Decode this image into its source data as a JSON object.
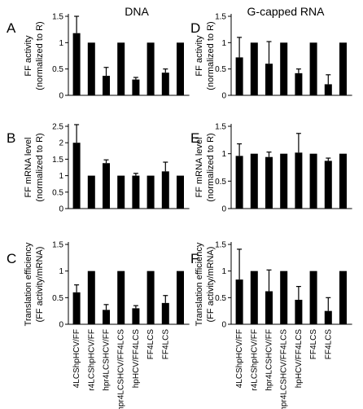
{
  "columns": [
    {
      "title": "DNA",
      "categories_ref": "left"
    },
    {
      "title": "G-capped RNA",
      "categories_ref": "right"
    }
  ],
  "categories_left": [
    "4LCShpHCV/FF",
    "r4LCShpHCV/FF",
    "hpr4LCSHCV/FF",
    "hpr4LCSHCV/FF4LCS",
    "hpHCV/FF4LCS",
    "FF4LCS",
    "FF4LCS"
  ],
  "categories_right": [
    "4LCShpHCV/FF",
    "r4LCShpHCV/FF",
    "hpr4LCSHCV/FF",
    "hpr4LCSHCV/FF4LCS",
    "hpHCV/FF4LCS",
    "FF4LCS",
    "FF4LCS"
  ],
  "chart_data": [
    {
      "panel": "A",
      "type": "bar",
      "column": "DNA",
      "ylabel": [
        "FF activity",
        "(normalized to R)"
      ],
      "ylim": [
        0,
        1.5
      ],
      "yticks": [
        "0",
        "0.5",
        "1",
        "1.5"
      ],
      "ytick_values": [
        0,
        0.5,
        1,
        1.5
      ],
      "values": [
        1.18,
        1.0,
        0.37,
        1.0,
        0.3,
        1.0,
        0.43,
        1.0
      ],
      "errors": [
        0.32,
        0,
        0.16,
        0,
        0.04,
        0,
        0.07,
        0
      ]
    },
    {
      "panel": "B",
      "type": "bar",
      "column": "DNA",
      "ylabel": [
        "FF mRNA level",
        "(normalized to R)"
      ],
      "ylim": [
        0,
        2.5
      ],
      "yticks": [
        "0",
        "0.5",
        "1",
        "1.5",
        "2",
        "2.5"
      ],
      "ytick_values": [
        0,
        0.5,
        1,
        1.5,
        2,
        2.5
      ],
      "values": [
        2.0,
        1.0,
        1.38,
        1.0,
        1.0,
        1.0,
        1.13,
        1.0
      ],
      "errors": [
        0.55,
        0,
        0.1,
        0,
        0.07,
        0,
        0.28,
        0
      ]
    },
    {
      "panel": "C",
      "type": "bar",
      "column": "DNA",
      "ylabel": [
        "Translation efficiency",
        "(FF activity/mRNA)"
      ],
      "ylim": [
        0,
        1.5
      ],
      "yticks": [
        "0",
        "0.5",
        "1",
        "1.5"
      ],
      "ytick_values": [
        0,
        0.5,
        1,
        1.5
      ],
      "values": [
        0.6,
        1.0,
        0.27,
        1.0,
        0.3,
        1.0,
        0.4,
        1.0
      ],
      "errors": [
        0.14,
        0,
        0.1,
        0,
        0.05,
        0,
        0.14,
        0
      ]
    },
    {
      "panel": "D",
      "type": "bar",
      "column": "G-capped RNA",
      "ylabel": [
        "FF activity",
        "(normalized to R)"
      ],
      "ylim": [
        0,
        1.5
      ],
      "yticks": [
        "0",
        "0.5",
        "1",
        "1.5"
      ],
      "ytick_values": [
        0,
        0.5,
        1,
        1.5
      ],
      "values": [
        0.72,
        1.0,
        0.6,
        1.0,
        0.42,
        1.0,
        0.21,
        1.0
      ],
      "errors": [
        0.38,
        0,
        0.42,
        0,
        0.08,
        0,
        0.18,
        0
      ]
    },
    {
      "panel": "E",
      "type": "bar",
      "column": "G-capped RNA",
      "ylabel": [
        "FF mRNA level",
        "(normalized to R)"
      ],
      "ylim": [
        0,
        1.5
      ],
      "yticks": [
        "0",
        "0.5",
        "1",
        "1.5"
      ],
      "ytick_values": [
        0,
        0.5,
        1,
        1.5
      ],
      "values": [
        0.96,
        1.0,
        0.94,
        1.0,
        1.02,
        1.0,
        0.87,
        1.0
      ],
      "errors": [
        0.22,
        0,
        0.09,
        0,
        0.35,
        0,
        0.05,
        0
      ]
    },
    {
      "panel": "F",
      "type": "bar",
      "column": "G-capped RNA",
      "ylabel": [
        "Translation efficiency",
        "(FF activity/mRNA)"
      ],
      "ylim": [
        0,
        1.5
      ],
      "yticks": [
        "0",
        "0.5",
        "1",
        "1.5"
      ],
      "ytick_values": [
        0,
        0.5,
        1,
        1.5
      ],
      "values": [
        0.84,
        1.0,
        0.62,
        1.0,
        0.46,
        1.0,
        0.25,
        1.0
      ],
      "errors": [
        0.57,
        0,
        0.4,
        0,
        0.25,
        0,
        0.25,
        0
      ]
    }
  ]
}
